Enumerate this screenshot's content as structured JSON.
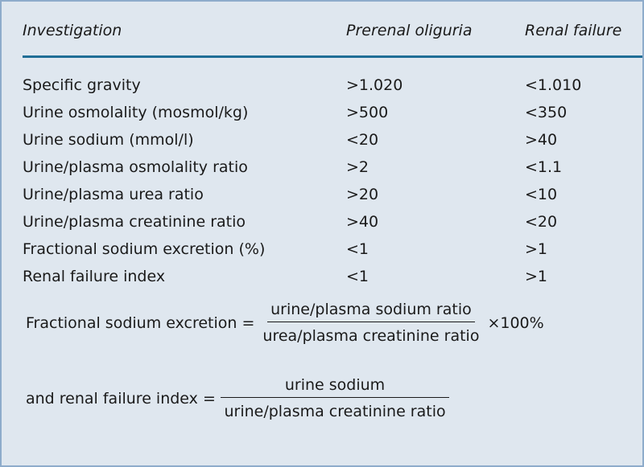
{
  "headers": [
    "Investigation",
    "Prerenal oliguria",
    "Renal failure"
  ],
  "rows": [
    [
      "Specific gravity",
      ">1.020",
      "<1.010"
    ],
    [
      "Urine osmolality (mosmol/kg)",
      ">500",
      "<350"
    ],
    [
      "Urine sodium (mmol/l)",
      "<20",
      ">40"
    ],
    [
      "Urine/plasma osmolality ratio",
      ">2",
      "<1.1"
    ],
    [
      "Urine/plasma urea ratio",
      ">20",
      "<10"
    ],
    [
      "Urine/plasma creatinine ratio",
      ">40",
      "<20"
    ],
    [
      "Fractional sodium excretion (%)",
      "<1",
      ">1"
    ],
    [
      "Renal failure index",
      "<1",
      ">1"
    ]
  ],
  "formula1": {
    "lhs": "Fractional sodium excretion =",
    "numerator": "urine/plasma sodium ratio",
    "denominator": "urea/plasma creatinine ratio",
    "suffix": "×100%"
  },
  "formula2": {
    "lhs": "and renal failure index =",
    "numerator": "urine sodium",
    "denominator": "urine/plasma creatinine ratio"
  },
  "colors": {
    "background": "#dfe7ef",
    "rule": "#1f6e96",
    "border": "#8eaccb"
  }
}
